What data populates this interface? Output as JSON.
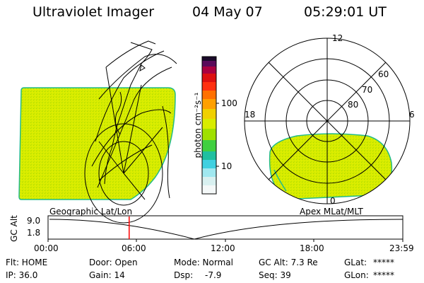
{
  "header": {
    "instrument": "Ultraviolet Imager",
    "date": "04 May 07",
    "time": "05:29:01 UT"
  },
  "colorbar": {
    "unit_label": "photon cm⁻²s⁻¹",
    "tick_100": "100",
    "tick_10": "10"
  },
  "polar": {
    "label_12": "12",
    "label_18": "18",
    "label_6": "6",
    "label_0": "0",
    "label_60": "60",
    "label_70": "70",
    "label_80": "80"
  },
  "panel_labels": {
    "left": "Geographic Lat/Lon",
    "right": "Apex MLat/MLT"
  },
  "altitude_strip": {
    "axis_label": "GC Alt",
    "y_top": "9.0",
    "y_bottom": "1.8",
    "x_ticks": [
      "00:00",
      "06:00",
      "12:00",
      "18:00",
      "23:59"
    ],
    "marker_time": "05:29",
    "marker_color": "#ff0000"
  },
  "status": {
    "flt": "Flt: HOME",
    "ip": "IP: 36.0",
    "door": "Door: Open",
    "gain": "Gain: 14",
    "mode": "Mode: Normal",
    "dsp_label": "Dsp:",
    "dsp_value": "-7.9",
    "gc_alt": "GC Alt: 7.3 Re",
    "seq": "Seq: 39",
    "glat_label": "GLat:",
    "glat_value": "*****",
    "glon_label": "GLon:",
    "glon_value": "*****"
  },
  "colors": {
    "aurora_fill": "#d8ec00",
    "aurora_edge": "#22bb88"
  }
}
